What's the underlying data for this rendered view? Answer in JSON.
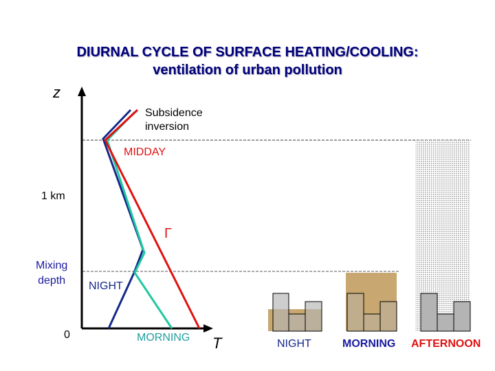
{
  "title": {
    "line1": "DIURNAL CYCLE OF SURFACE HEATING/COOLING:",
    "line2": "ventilation of urban pollution"
  },
  "axes": {
    "z_label": "z",
    "t_label": "T",
    "tick_1km": "1 km",
    "tick_0": "0",
    "mixing_depth": "Mixing\ndepth"
  },
  "profiles": {
    "subsidence": "Subsidence\ninversion",
    "midday": "MIDDAY",
    "gamma": "Γ",
    "night": "NIGHT",
    "morning": "MORNING"
  },
  "panels": {
    "night": "NIGHT",
    "morning": "MORNING",
    "afternoon": "AFTERNOON"
  },
  "colors": {
    "title": "#00007a",
    "midday": "#e01010",
    "night": "#14288a",
    "morning": "#20c8a0",
    "afternoon_label": "#e01010",
    "morning_label": "#1a1aa0",
    "pollution": "#c8a870",
    "building": "#b4b4b4"
  }
}
